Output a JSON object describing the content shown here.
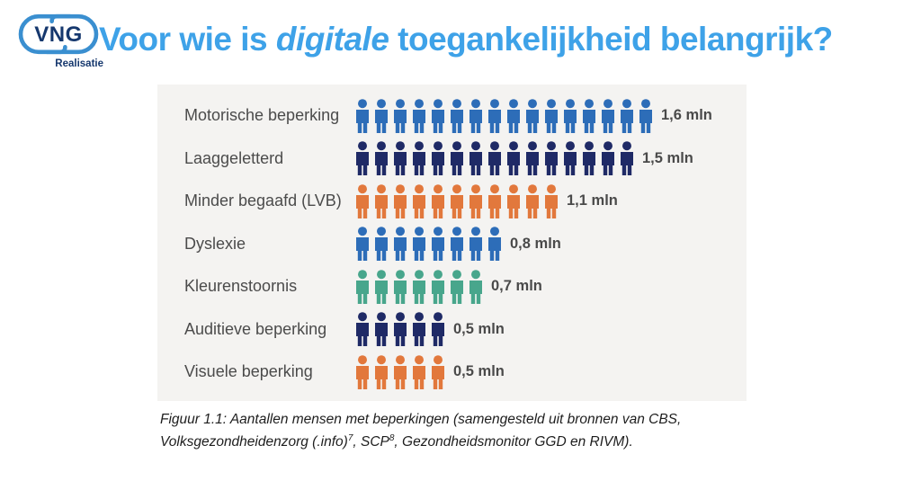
{
  "logo": {
    "text": "VNG",
    "subtext": "Realisatie"
  },
  "title": {
    "prefix": "Voor wie is ",
    "emphasis": "digitale",
    "suffix": " toegankelijkheid belangrijk?"
  },
  "chart_data": {
    "type": "pictogram-bar",
    "unit": "mln",
    "icon": "person-icon",
    "icon_value": 0.1,
    "categories": [
      "Motorische beperking",
      "Laaggeletterd",
      "Minder begaafd (LVB)",
      "Dyslexie",
      "Kleurenstoornis",
      "Auditieve beperking",
      "Visuele beperking"
    ],
    "values": [
      1.6,
      1.5,
      1.1,
      0.8,
      0.7,
      0.5,
      0.5
    ],
    "value_labels": [
      "1,6 mln",
      "1,5 mln",
      "1,1 mln",
      "0,8 mln",
      "0,7 mln",
      "0,5 mln",
      "0,5 mln"
    ],
    "icon_counts": [
      16,
      15,
      11,
      8,
      7,
      5,
      5
    ],
    "icon_colors": [
      "#2d6db8",
      "#1f2a66",
      "#e2783c",
      "#2d6db8",
      "#48a68c",
      "#1f2a66",
      "#e2783c"
    ]
  },
  "caption": {
    "line1": "Figuur 1.1: Aantallen mensen met beperkingen (samengesteld uit bronnen van CBS,",
    "line2_parts": {
      "a": "Volksgezondheidenzorg (.info)",
      "sup_a": "7",
      "b": ", SCP",
      "sup_b": "8",
      "c": ", Gezondheidsmonitor GGD en RIVM)."
    }
  },
  "colors": {
    "title_blue": "#3ea2e8",
    "logo_navy": "#16386e",
    "logo_outline_blue": "#3a8fd0",
    "chart_bg": "#f4f3f1",
    "label_gray": "#4b4b4b",
    "value_gray": "#4a4a4a"
  }
}
